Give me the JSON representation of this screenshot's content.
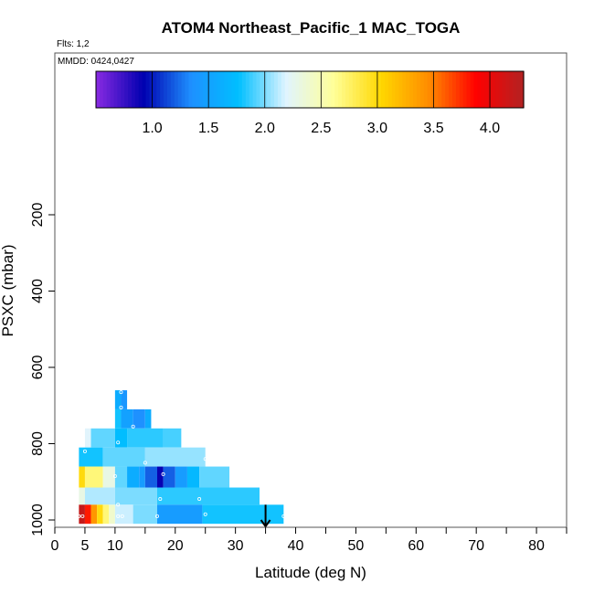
{
  "chart_data": {
    "type": "heatmap",
    "title": "ATOM4 Northeast_Pacific_1 MAC_TOGA",
    "flights_label": "Flts: 1,2",
    "dates_label": "MMDD: 0424,0427",
    "xlabel": "Latitude (deg N)",
    "ylabel": "PSXC (mbar)",
    "xlim": [
      0,
      85
    ],
    "ylim": [
      1000,
      80
    ],
    "y_reversed": true,
    "x_ticks": [
      0,
      5,
      10,
      20,
      30,
      40,
      50,
      60,
      70,
      80
    ],
    "x_minor_ticks": [
      15,
      25,
      35,
      45,
      55,
      65,
      75,
      85
    ],
    "y_ticks": [
      200,
      400,
      600,
      800,
      1000
    ],
    "grid": false,
    "colorbar": {
      "range": [
        0.5,
        4.3
      ],
      "ticks": [
        1.0,
        1.5,
        2.0,
        2.5,
        3.0,
        3.5,
        4.0
      ],
      "tick_labels": [
        "1.0",
        "1.5",
        "2.0",
        "2.5",
        "3.0",
        "3.5",
        "4.0"
      ],
      "colors": [
        "#8a2be2",
        "#0000b0",
        "#1e90ff",
        "#00bfff",
        "#e0f4ff",
        "#ffff99",
        "#ffd700",
        "#ff8c00",
        "#ff0000",
        "#b22222"
      ]
    },
    "bands": [
      {
        "p_top": 660,
        "p_bot": 710,
        "segments": [
          {
            "x0": 10.0,
            "x1": 11.0,
            "v": 1.6
          },
          {
            "x0": 11.0,
            "x1": 12.0,
            "v": 1.4
          }
        ]
      },
      {
        "p_top": 710,
        "p_bot": 760,
        "segments": [
          {
            "x0": 10.0,
            "x1": 11.0,
            "v": 1.8
          },
          {
            "x0": 11.0,
            "x1": 13.0,
            "v": 1.5
          },
          {
            "x0": 13.0,
            "x1": 15.0,
            "v": 1.35
          },
          {
            "x0": 15.0,
            "x1": 16.0,
            "v": 1.6
          }
        ]
      },
      {
        "p_top": 760,
        "p_bot": 810,
        "segments": [
          {
            "x0": 5.0,
            "x1": 6.0,
            "v": 2.2
          },
          {
            "x0": 6.0,
            "x1": 10.0,
            "v": 1.95
          },
          {
            "x0": 10.0,
            "x1": 12.0,
            "v": 1.75
          },
          {
            "x0": 12.0,
            "x1": 18.0,
            "v": 1.85
          },
          {
            "x0": 18.0,
            "x1": 21.0,
            "v": 1.9
          }
        ]
      },
      {
        "p_top": 810,
        "p_bot": 860,
        "segments": [
          {
            "x0": 4.0,
            "x1": 8.0,
            "v": 1.8
          },
          {
            "x0": 8.0,
            "x1": 15.0,
            "v": 1.95
          },
          {
            "x0": 15.0,
            "x1": 25.0,
            "v": 2.05
          }
        ]
      },
      {
        "p_top": 860,
        "p_bot": 915,
        "segments": [
          {
            "x0": 4.0,
            "x1": 5.0,
            "v": 3.0
          },
          {
            "x0": 5.0,
            "x1": 8.0,
            "v": 2.7
          },
          {
            "x0": 8.0,
            "x1": 10.0,
            "v": 2.3
          },
          {
            "x0": 10.0,
            "x1": 12.0,
            "v": 1.95
          },
          {
            "x0": 12.0,
            "x1": 14.0,
            "v": 1.6
          },
          {
            "x0": 14.0,
            "x1": 15.0,
            "v": 1.45
          },
          {
            "x0": 15.0,
            "x1": 17.0,
            "v": 1.2
          },
          {
            "x0": 17.0,
            "x1": 18.0,
            "v": 0.9
          },
          {
            "x0": 18.0,
            "x1": 20.0,
            "v": 1.2
          },
          {
            "x0": 20.0,
            "x1": 22.0,
            "v": 1.45
          },
          {
            "x0": 22.0,
            "x1": 24.0,
            "v": 1.7
          },
          {
            "x0": 24.0,
            "x1": 29.0,
            "v": 1.95
          }
        ]
      },
      {
        "p_top": 915,
        "p_bot": 960,
        "segments": [
          {
            "x0": 4.0,
            "x1": 5.0,
            "v": 2.3
          },
          {
            "x0": 5.0,
            "x1": 10.0,
            "v": 2.1
          },
          {
            "x0": 10.0,
            "x1": 17.0,
            "v": 2.0
          },
          {
            "x0": 17.0,
            "x1": 34.0,
            "v": 1.85
          }
        ]
      },
      {
        "p_top": 960,
        "p_bot": 1010,
        "segments": [
          {
            "x0": 4.0,
            "x1": 5.0,
            "v": 4.2
          },
          {
            "x0": 5.0,
            "x1": 6.0,
            "v": 3.8
          },
          {
            "x0": 6.0,
            "x1": 7.0,
            "v": 3.4
          },
          {
            "x0": 7.0,
            "x1": 8.0,
            "v": 3.0
          },
          {
            "x0": 8.0,
            "x1": 9.0,
            "v": 2.7
          },
          {
            "x0": 9.0,
            "x1": 10.0,
            "v": 2.4
          },
          {
            "x0": 10.0,
            "x1": 13.0,
            "v": 2.15
          },
          {
            "x0": 13.0,
            "x1": 17.0,
            "v": 2.0
          },
          {
            "x0": 17.0,
            "x1": 24.5,
            "v": 1.45
          },
          {
            "x0": 24.5,
            "x1": 38.0,
            "v": 1.8
          }
        ]
      }
    ],
    "points": [
      {
        "x": 11.0,
        "p": 665
      },
      {
        "x": 11.0,
        "p": 705
      },
      {
        "x": 13.0,
        "p": 755
      },
      {
        "x": 10.5,
        "p": 797
      },
      {
        "x": 5.0,
        "p": 820
      },
      {
        "x": 15.0,
        "p": 850
      },
      {
        "x": 25.0,
        "p": 840
      },
      {
        "x": 10.0,
        "p": 885
      },
      {
        "x": 18.0,
        "p": 880
      },
      {
        "x": 17.5,
        "p": 945
      },
      {
        "x": 24.0,
        "p": 945
      },
      {
        "x": 10.5,
        "p": 960
      },
      {
        "x": 4.0,
        "p": 990
      },
      {
        "x": 4.6,
        "p": 990
      },
      {
        "x": 10.5,
        "p": 990
      },
      {
        "x": 11.2,
        "p": 990
      },
      {
        "x": 17.0,
        "p": 990
      },
      {
        "x": 25.0,
        "p": 985
      },
      {
        "x": 38.0,
        "p": 990
      }
    ],
    "arrow": {
      "x": 35.0,
      "p_from": 960,
      "p_to": 1000
    }
  }
}
